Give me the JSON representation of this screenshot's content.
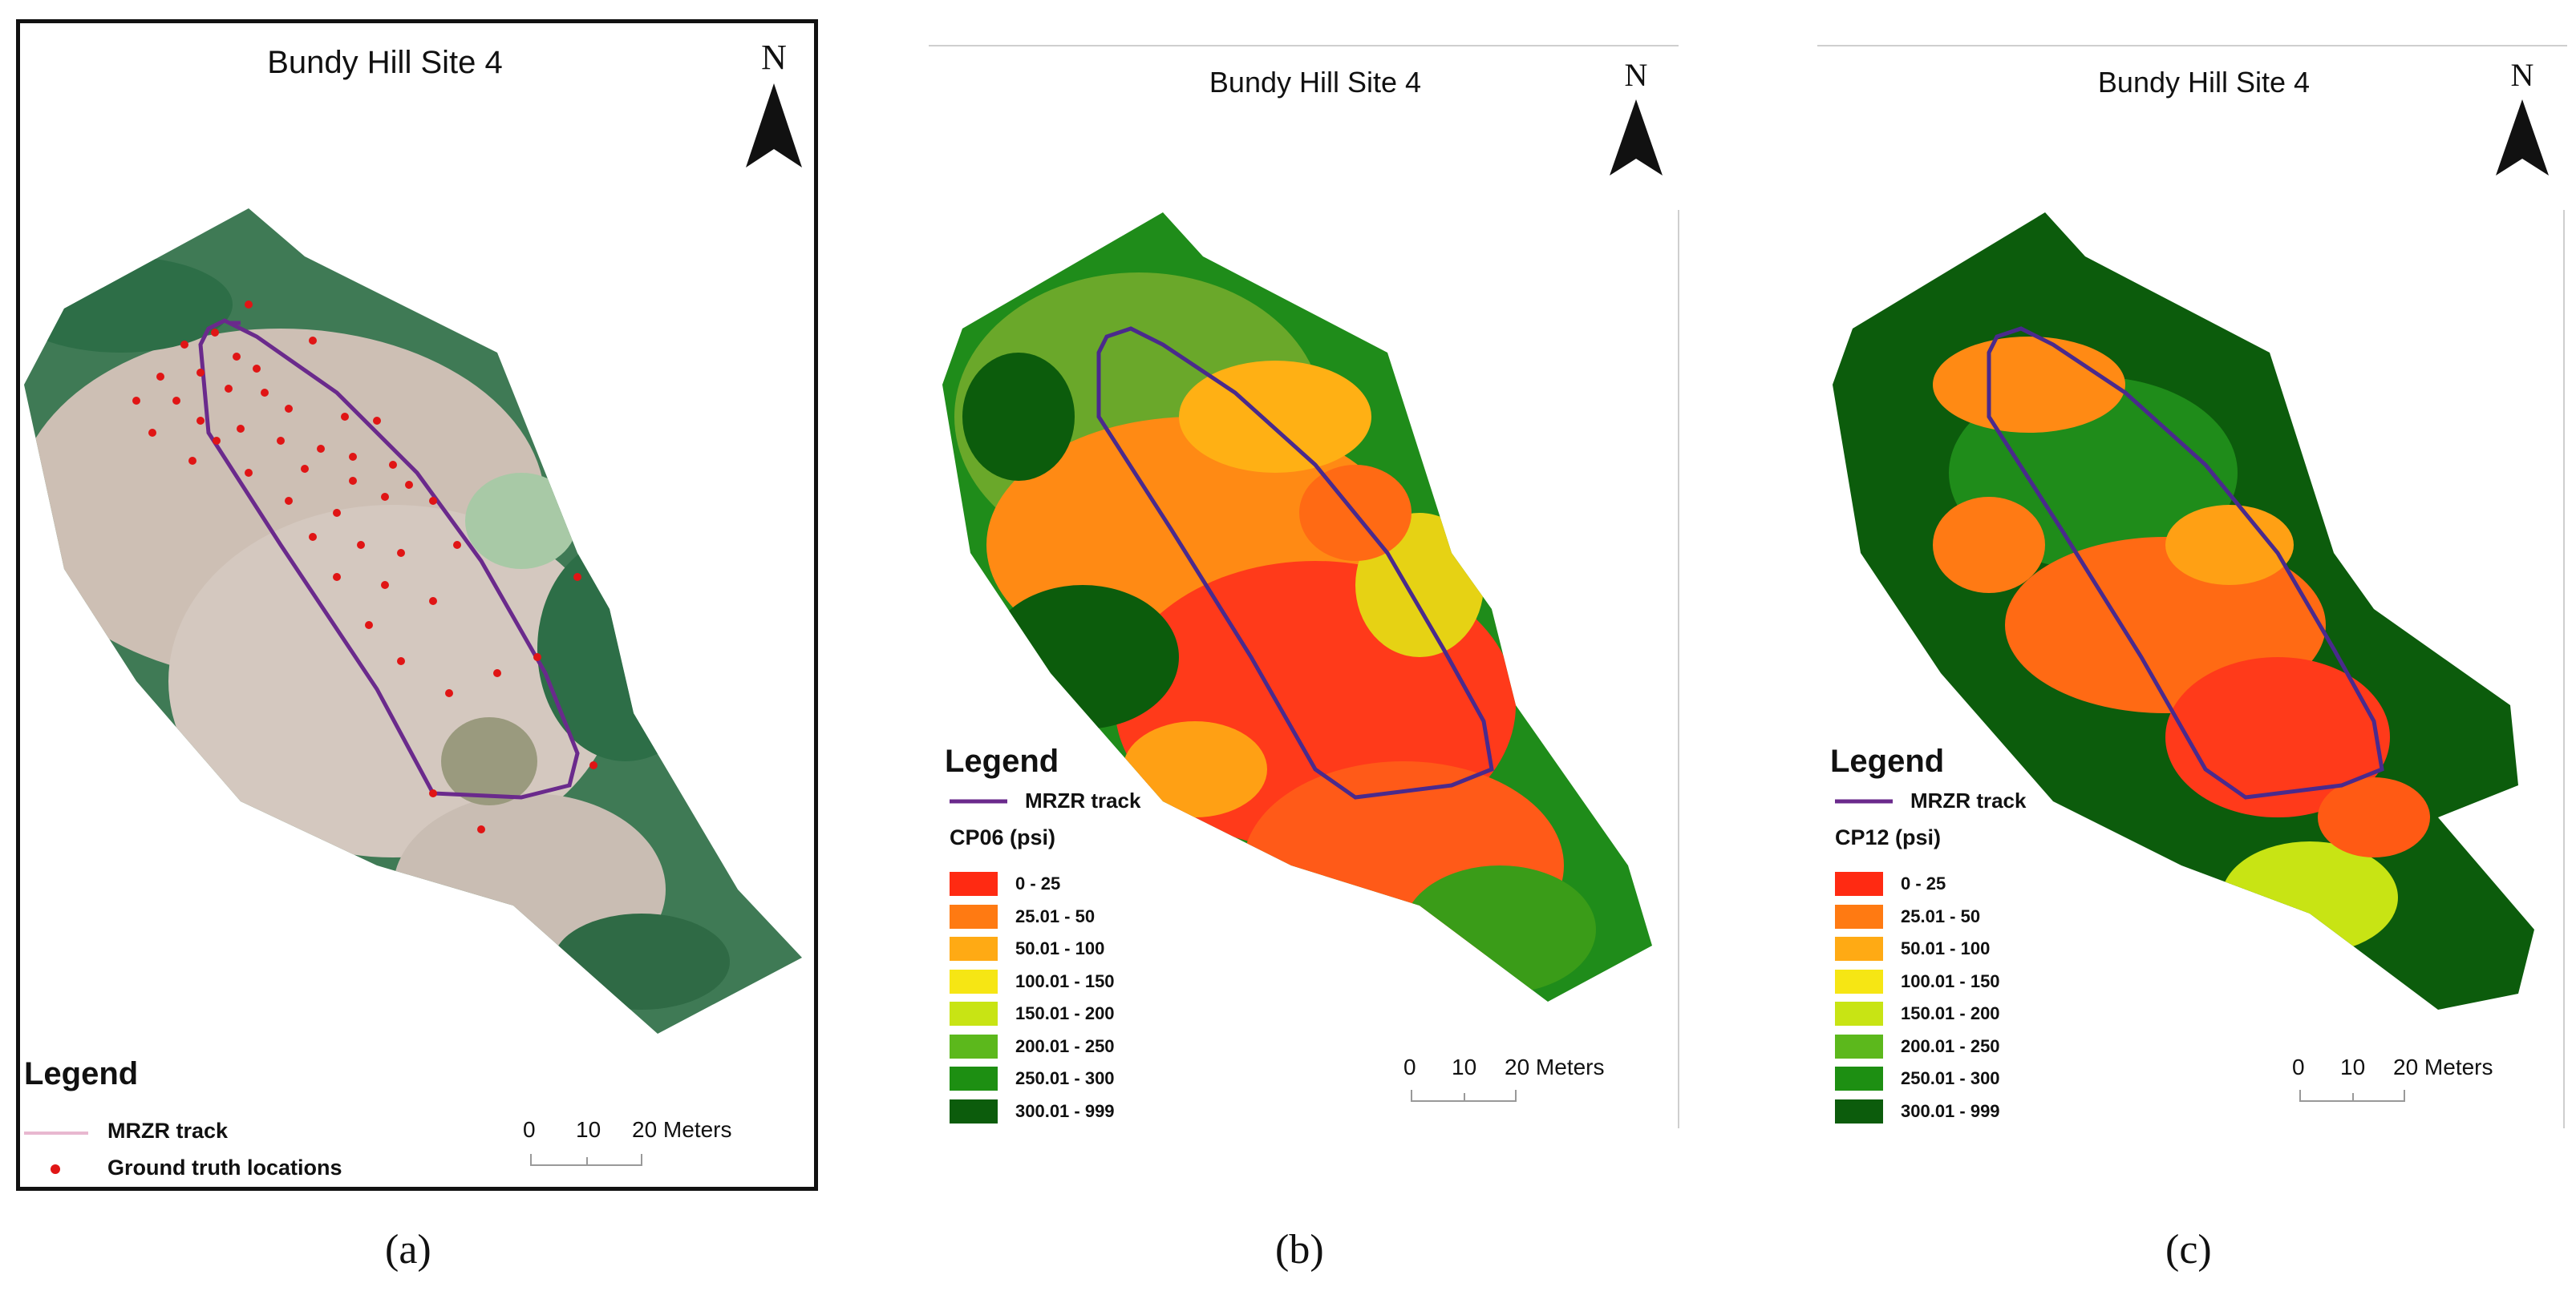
{
  "panels": [
    {
      "id": "a",
      "title": "Bundy Hill Site 4",
      "north": "N",
      "legend_title": "Legend",
      "track_label": "MRZR track",
      "points_label": "Ground truth locations",
      "scale_labels": [
        "0",
        "10",
        "20 Meters"
      ],
      "caption": "(a)"
    },
    {
      "id": "b",
      "title": "Bundy Hill Site 4",
      "north": "N",
      "legend_title": "Legend",
      "track_label": "MRZR track",
      "classes_title": "CP06 (psi)",
      "scale_labels": [
        "0",
        "10",
        "20 Meters"
      ],
      "caption": "(b)"
    },
    {
      "id": "c",
      "title": "Bundy Hill Site 4",
      "north": "N",
      "legend_title": "Legend",
      "track_label": "MRZR track",
      "classes_title": "CP12 (psi)",
      "scale_labels": [
        "0",
        "10",
        "20 Meters"
      ],
      "caption": "(c)"
    }
  ],
  "classes": [
    {
      "label": "0 - 25",
      "color": "#ff2a12"
    },
    {
      "label": "25.01 - 50",
      "color": "#ff7a12"
    },
    {
      "label": "50.01 - 100",
      "color": "#ffaa14"
    },
    {
      "label": "100.01 - 150",
      "color": "#f6e614"
    },
    {
      "label": "150.01 - 200",
      "color": "#c8e414"
    },
    {
      "label": "200.01 - 250",
      "color": "#5cb81c"
    },
    {
      "label": "250.01 - 300",
      "color": "#1d8f12"
    },
    {
      "label": "300.01 - 999",
      "color": "#0c5c0c"
    }
  ],
  "colors": {
    "track": "#6a2a8c",
    "ground_truth": "#e01515",
    "panel_a_track_legend": "#e8b8d0"
  }
}
